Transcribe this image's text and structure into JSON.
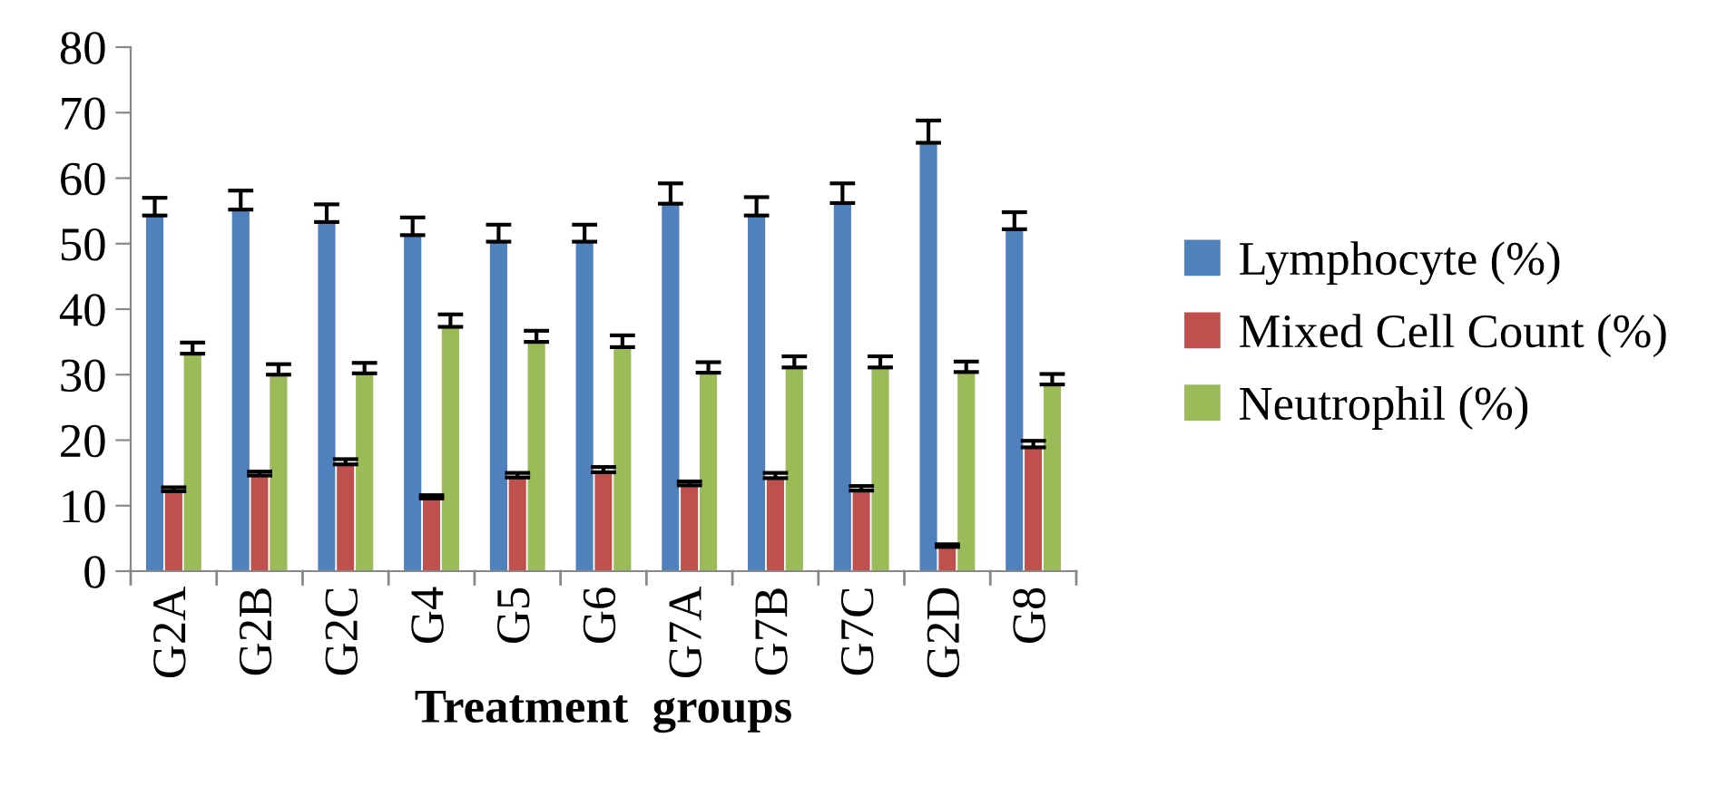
{
  "chart_data": {
    "type": "bar",
    "xlabel": "Treatment  groups",
    "categories": [
      "G2A",
      "G2B",
      "G2C",
      "G4",
      "G5",
      "G6",
      "G7A",
      "G7B",
      "G7C",
      "G2D",
      "G8"
    ],
    "series": [
      {
        "name": "Lymphocyte (%)",
        "color": "#4f81bd",
        "values": [
          54.3,
          55.2,
          53.3,
          51.3,
          50.3,
          50.3,
          56.1,
          54.3,
          56.2,
          65.4,
          52.2
        ],
        "errors": [
          [
            54.3,
            57.0
          ],
          [
            55.2,
            58.1
          ],
          [
            53.3,
            56.0
          ],
          [
            51.3,
            54.0
          ],
          [
            50.3,
            52.9
          ],
          [
            50.3,
            52.9
          ],
          [
            56.1,
            59.2
          ],
          [
            54.3,
            57.1
          ],
          [
            56.2,
            59.2
          ],
          [
            65.4,
            68.8
          ],
          [
            52.2,
            54.8
          ]
        ]
      },
      {
        "name": "Mixed Cell Count (%)",
        "color": "#c0504d",
        "values": [
          12.2,
          14.6,
          16.3,
          11.1,
          14.3,
          15.1,
          13.1,
          14.2,
          12.3,
          3.7,
          18.9
        ],
        "errors": [
          [
            12.2,
            12.8
          ],
          [
            14.6,
            15.2
          ],
          [
            16.3,
            17.1
          ],
          [
            11.1,
            11.6
          ],
          [
            14.3,
            15.0
          ],
          [
            15.1,
            15.9
          ],
          [
            13.1,
            13.7
          ],
          [
            14.2,
            15.0
          ],
          [
            12.3,
            13.0
          ],
          [
            3.7,
            4.1
          ],
          [
            18.9,
            19.9
          ]
        ]
      },
      {
        "name": "Neutrophil (%)",
        "color": "#9bbb59",
        "values": [
          33.2,
          30.0,
          30.2,
          37.3,
          35.0,
          34.2,
          30.3,
          31.1,
          31.1,
          30.4,
          28.5
        ],
        "errors": [
          [
            33.2,
            34.9
          ],
          [
            30.0,
            31.6
          ],
          [
            30.2,
            31.8
          ],
          [
            37.3,
            39.2
          ],
          [
            35.0,
            36.7
          ],
          [
            34.2,
            36.0
          ],
          [
            30.3,
            31.9
          ],
          [
            31.1,
            32.8
          ],
          [
            31.1,
            32.8
          ],
          [
            30.4,
            32.0
          ],
          [
            28.5,
            30.1
          ]
        ]
      }
    ],
    "ylim": [
      0,
      80
    ],
    "yticks": [
      0,
      10,
      20,
      30,
      40,
      50,
      60,
      70,
      80
    ],
    "grid": false,
    "legend": "right"
  }
}
